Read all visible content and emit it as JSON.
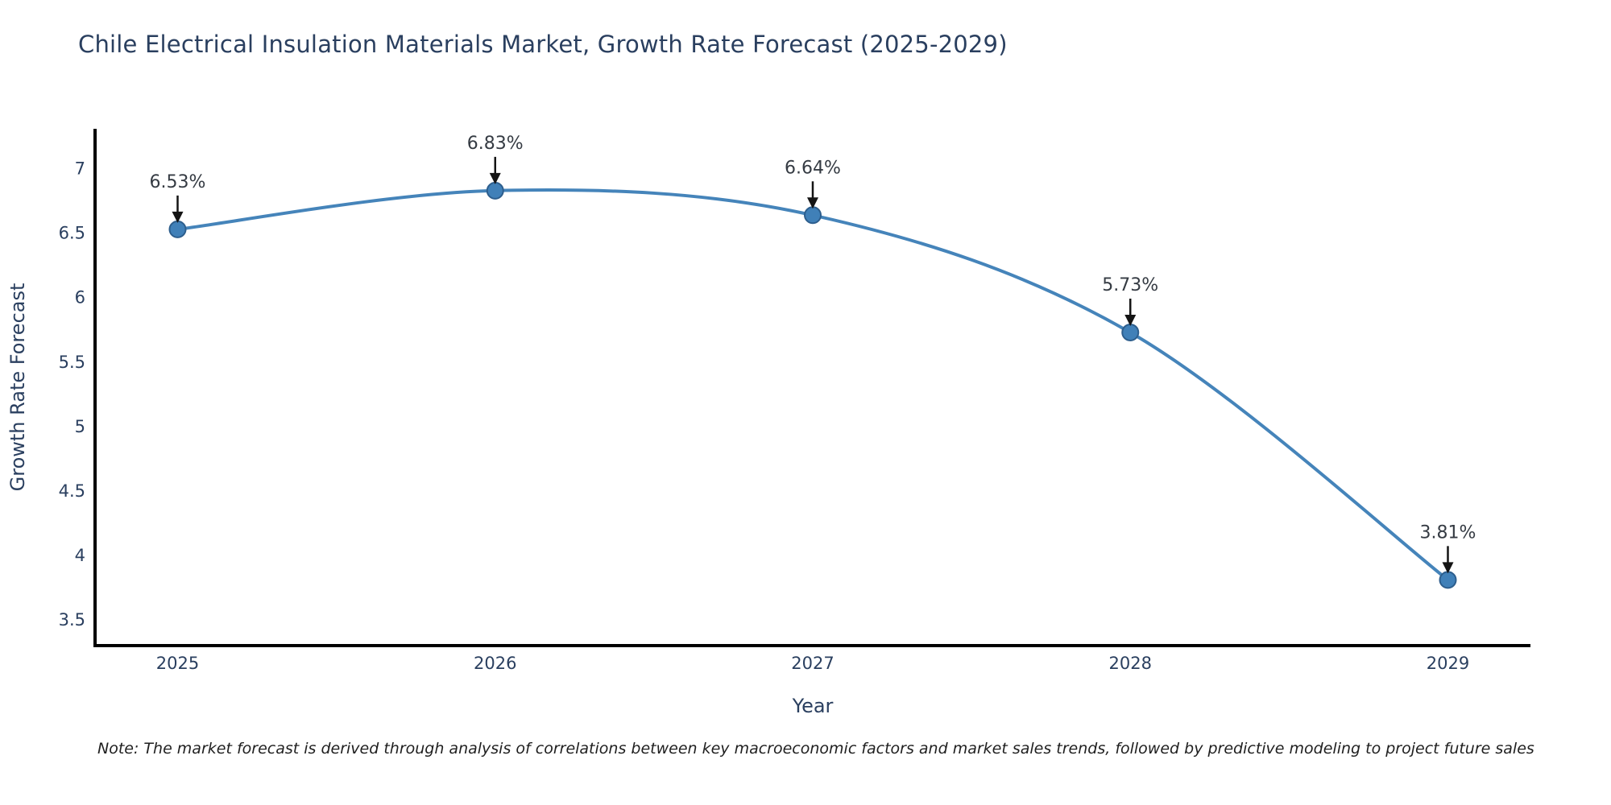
{
  "page": {
    "background": "#ffffff"
  },
  "note": {
    "text": "Note: The market forecast is derived through analysis of correlations between key macroeconomic factors and market sales trends, followed by predictive modeling to project future sales"
  },
  "chart_data": {
    "type": "line",
    "title": "Chile Electrical Insulation Materials Market, Growth Rate Forecast (2025-2029)",
    "xlabel": "Year",
    "ylabel": "Growth Rate Forecast",
    "x": [
      2025,
      2026,
      2027,
      2028,
      2029
    ],
    "series": [
      {
        "name": "Growth Rate Forecast",
        "values": [
          6.53,
          6.83,
          6.64,
          5.73,
          3.81
        ]
      }
    ],
    "point_labels": [
      "6.53%",
      "6.83%",
      "6.64%",
      "5.73%",
      "3.81%"
    ],
    "xticks": {
      "values": [
        2025,
        2026,
        2027,
        2028,
        2029
      ],
      "labels": [
        "2025",
        "2026",
        "2027",
        "2028",
        "2029"
      ]
    },
    "yticks": {
      "values": [
        3.5,
        4,
        4.5,
        5,
        5.5,
        6,
        6.5,
        7
      ],
      "labels": [
        "3.5",
        "4",
        "4.5",
        "5",
        "5.5",
        "6",
        "6.5",
        "7"
      ]
    },
    "xlim": [
      2024.74,
      2029.26
    ],
    "ylim": [
      3.3,
      7.31
    ],
    "grid": false,
    "legend_position": "none",
    "line_smoothing": true,
    "annotation_arrow": "down",
    "colors": {
      "line": "#4584ba",
      "marker_fill": "#4080b8",
      "marker_edge": "#2d5e8d",
      "axis": "#000000",
      "tick_text": "#2a3f5f",
      "axis_label_text": "#2a3f5f",
      "title_text": "#2a3f5f",
      "annotation_text": "#353b43",
      "arrow": "#141414",
      "note_text": "#1f1f1f"
    }
  }
}
